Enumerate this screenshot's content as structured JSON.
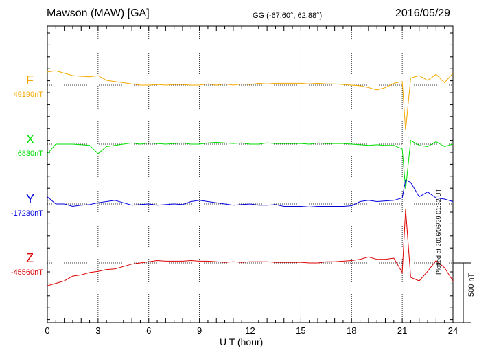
{
  "header": {
    "station": "Mawson (MAW)  [GA]",
    "coords": "GG (-67.60°,  62.88°)",
    "date": "2016/05/29"
  },
  "footer": {
    "plotted": "Plotted at 2016/06/29 01:32 UT",
    "scale_label": "500 nT"
  },
  "chart_data": {
    "type": "line",
    "title": "Mawson (MAW)  [GA]",
    "xlabel": "U T (hour)",
    "ylabel": "",
    "xlim": [
      0,
      24
    ],
    "xticks": [
      "0",
      "3",
      "6",
      "9",
      "12",
      "15",
      "18",
      "21",
      "24"
    ],
    "scale_bar_nT": 500,
    "grid": true,
    "x": [
      0,
      0.5,
      1,
      1.5,
      2,
      2.5,
      3,
      3.5,
      4,
      4.5,
      5,
      5.5,
      6,
      6.5,
      7,
      7.5,
      8,
      8.5,
      9,
      9.5,
      10,
      10.5,
      11,
      11.5,
      12,
      12.5,
      13,
      13.5,
      14,
      14.5,
      15,
      15.5,
      16,
      16.5,
      17,
      17.5,
      18,
      18.5,
      19,
      19.5,
      20,
      20.5,
      21,
      21.2,
      21.5,
      22,
      22.5,
      23,
      23.5,
      24
    ],
    "series": [
      {
        "name": "F",
        "baseline_label": "49190nT",
        "color": "#f5a800",
        "values": [
          110,
          120,
          100,
          80,
          75,
          70,
          80,
          40,
          30,
          20,
          10,
          0,
          0,
          5,
          0,
          5,
          5,
          0,
          0,
          10,
          0,
          10,
          0,
          10,
          5,
          15,
          10,
          15,
          15,
          15,
          15,
          10,
          15,
          10,
          10,
          5,
          0,
          -5,
          -20,
          -40,
          -20,
          15,
          30,
          -380,
          60,
          80,
          40,
          90,
          20,
          100
        ]
      },
      {
        "name": "X",
        "baseline_label": "6830nT",
        "color": "#00dd00",
        "values": [
          -80,
          0,
          0,
          0,
          -5,
          -10,
          -80,
          -20,
          -10,
          0,
          10,
          0,
          10,
          5,
          0,
          5,
          10,
          0,
          0,
          10,
          15,
          10,
          5,
          10,
          0,
          0,
          10,
          5,
          5,
          5,
          5,
          0,
          10,
          5,
          5,
          5,
          0,
          -5,
          -10,
          -5,
          -10,
          -10,
          -40,
          -380,
          30,
          -10,
          -20,
          20,
          -20,
          0
        ]
      },
      {
        "name": "Y",
        "baseline_label": "-17230nT",
        "color": "#0000dd",
        "values": [
          60,
          0,
          0,
          -20,
          -10,
          -5,
          10,
          20,
          30,
          10,
          -10,
          -5,
          0,
          -10,
          -5,
          0,
          -5,
          20,
          30,
          20,
          10,
          0,
          -10,
          -5,
          0,
          -10,
          -10,
          -5,
          -20,
          -20,
          -20,
          -25,
          -20,
          -20,
          -20,
          -20,
          -15,
          20,
          30,
          20,
          25,
          30,
          50,
          200,
          180,
          60,
          100,
          50,
          40,
          20
        ]
      },
      {
        "name": "Z",
        "baseline_label": "-45560nT",
        "color": "#dd0000",
        "values": [
          -190,
          -170,
          -150,
          -110,
          -100,
          -80,
          -70,
          -55,
          -50,
          -30,
          -10,
          0,
          10,
          20,
          15,
          15,
          15,
          20,
          15,
          15,
          10,
          5,
          10,
          5,
          10,
          10,
          10,
          5,
          5,
          5,
          5,
          0,
          0,
          10,
          10,
          15,
          20,
          30,
          50,
          30,
          30,
          40,
          -80,
          450,
          -120,
          -150,
          -70,
          20,
          -40,
          -150
        ]
      }
    ]
  }
}
